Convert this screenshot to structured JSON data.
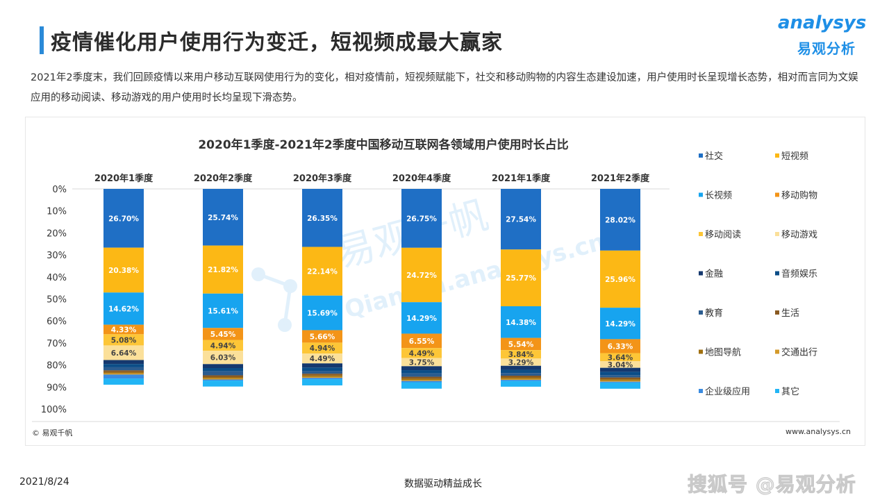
{
  "header": {
    "title": "疫情催化用户使用行为变迁，短视频成最大赢家",
    "logo_en": "analysys",
    "logo_cn": "易观分析"
  },
  "intro": "2021年2季度末，我们回顾疫情以来用户移动互联网使用行为的变化，相对疫情前，短视频赋能下，社交和移动购物的内容生态建设加速，用户使用时长呈现增长态势，相对而言同为文娱应用的移动阅读、移动游戏的用户使用时长均呈现下滑态势。",
  "chart_data": {
    "type": "bar",
    "stacked": true,
    "orientation": "vertical-inverted",
    "title": "2020年1季度-2021年2季度中国移动互联网各领域用户使用时长占比",
    "categories": [
      "2020年1季度",
      "2020年2季度",
      "2020年3季度",
      "2020年4季度",
      "2021年1季度",
      "2021年2季度"
    ],
    "y_ticks": [
      "0%",
      "10%",
      "20%",
      "30%",
      "40%",
      "50%",
      "60%",
      "70%",
      "80%",
      "90%",
      "100%"
    ],
    "ylim": [
      0,
      100
    ],
    "legend_position": "right",
    "series": [
      {
        "name": "社交",
        "color": "#1f6fc5",
        "values": [
          26.7,
          25.74,
          26.35,
          26.75,
          27.54,
          28.02
        ],
        "labels": [
          "26.70%",
          "25.74%",
          "26.35%",
          "26.75%",
          "27.54%",
          "28.02%"
        ]
      },
      {
        "name": "短视频",
        "color": "#fcb815",
        "values": [
          20.38,
          21.82,
          22.14,
          24.72,
          25.77,
          25.96
        ],
        "labels": [
          "20.38%",
          "21.82%",
          "22.14%",
          "24.72%",
          "25.77%",
          "25.96%"
        ]
      },
      {
        "name": "长视频",
        "color": "#17a4ef",
        "values": [
          14.62,
          15.61,
          15.69,
          14.29,
          14.38,
          14.29
        ],
        "labels": [
          "14.62%",
          "15.61%",
          "15.69%",
          "14.29%",
          "14.38%",
          "14.29%"
        ]
      },
      {
        "name": "移动购物",
        "color": "#f39418",
        "values": [
          4.33,
          5.45,
          5.66,
          6.55,
          5.54,
          6.33
        ],
        "labels": [
          "4.33%",
          "5.45%",
          "5.66%",
          "6.55%",
          "5.54%",
          "6.33%"
        ]
      },
      {
        "name": "移动阅读",
        "color": "#fdc637",
        "values": [
          5.08,
          4.94,
          4.94,
          4.49,
          3.84,
          3.64
        ],
        "labels": [
          "5.08%",
          "4.94%",
          "4.94%",
          "4.49%",
          "3.84%",
          "3.64%"
        ]
      },
      {
        "name": "移动游戏",
        "color": "#fbe09a",
        "values": [
          6.64,
          6.03,
          4.49,
          3.75,
          3.29,
          3.04
        ],
        "labels": [
          "6.64%",
          "6.03%",
          "4.49%",
          "3.75%",
          "3.29%",
          "3.04%"
        ]
      },
      {
        "name": "金融",
        "color": "#15386e",
        "values": [
          1.8,
          1.8,
          1.9,
          1.8,
          1.8,
          1.8
        ],
        "labels": []
      },
      {
        "name": "音频娱乐",
        "color": "#0b4d87",
        "values": [
          1.5,
          1.5,
          1.5,
          1.5,
          1.5,
          1.5
        ],
        "labels": []
      },
      {
        "name": "教育",
        "color": "#2b5c8f",
        "values": [
          1.4,
          1.8,
          1.3,
          1.5,
          1.2,
          1.1
        ],
        "labels": []
      },
      {
        "name": "生活",
        "color": "#8a5a22",
        "values": [
          0.8,
          0.8,
          0.8,
          0.8,
          0.8,
          0.8
        ],
        "labels": []
      },
      {
        "name": "地图导航",
        "color": "#a07010",
        "values": [
          0.6,
          0.6,
          0.6,
          0.6,
          0.6,
          0.6
        ],
        "labels": []
      },
      {
        "name": "交通出行",
        "color": "#d49a2a",
        "values": [
          0.5,
          0.5,
          0.5,
          0.5,
          0.5,
          0.5
        ],
        "labels": []
      },
      {
        "name": "企业级应用",
        "color": "#3a8be0",
        "values": [
          1.8,
          0.5,
          0.6,
          0.6,
          0.5,
          0.4
        ],
        "labels": []
      },
      {
        "name": "其它",
        "color": "#22b5f5",
        "values": [
          2.8,
          2.7,
          2.8,
          2.9,
          2.6,
          2.8
        ],
        "labels": []
      }
    ]
  },
  "watermark": {
    "cn": "易观千帆",
    "url": "Qianfan.analysys.cn"
  },
  "source": "© 易观千帆",
  "website": "www.analysys.cn",
  "footer": {
    "date": "2021/8/24",
    "slogan": "数据驱动精益成长",
    "brand": "搜狐号 @易观分析"
  }
}
